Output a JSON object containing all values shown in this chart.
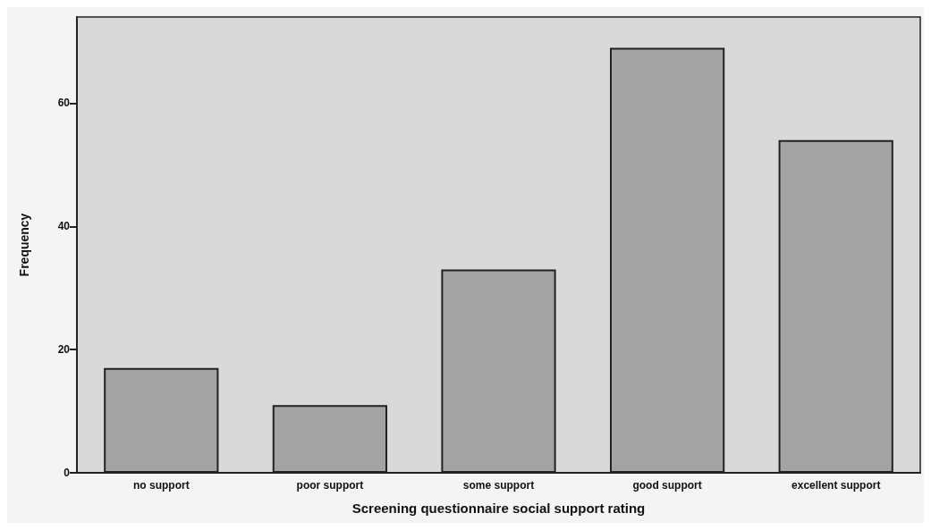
{
  "chart_data": {
    "type": "bar",
    "xlabel": "Screening questionnaire social support rating",
    "ylabel": "Frequency",
    "categories": [
      "no support",
      "poor support",
      "some support",
      "good support",
      "excellent support"
    ],
    "values": [
      17,
      11,
      33,
      69,
      54
    ],
    "color": "#a3a3a3",
    "ylim": [
      0,
      74
    ],
    "yticks": [
      0,
      20,
      40,
      60
    ],
    "grid": false
  }
}
